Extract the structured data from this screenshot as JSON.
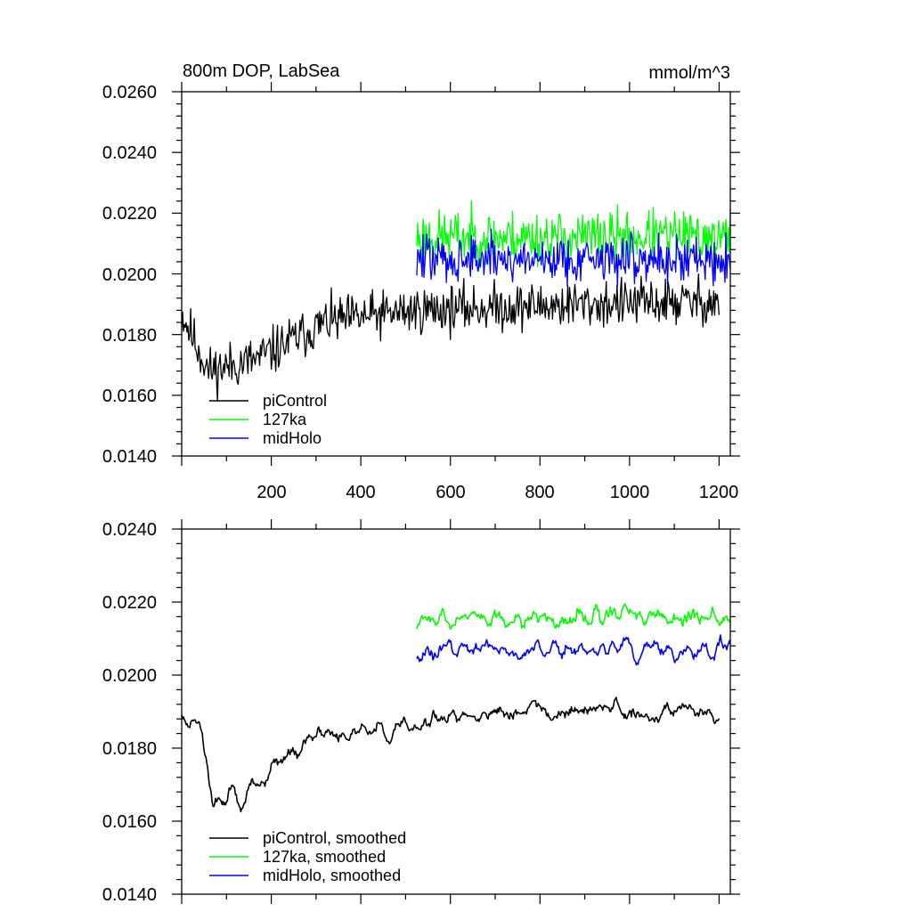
{
  "chart_data": [
    {
      "type": "line",
      "title": "800m DOP, LabSea",
      "units": "mmol/m^3",
      "xlabel": "",
      "ylabel": "",
      "xlim": [
        0,
        1225
      ],
      "ylim": [
        0.014,
        0.026
      ],
      "x_ticks": [
        200,
        400,
        600,
        800,
        1000,
        1200
      ],
      "x_tick_labels": [
        "200",
        "400",
        "600",
        "800",
        "1000",
        "1200"
      ],
      "y_ticks": [
        0.014,
        0.016,
        0.018,
        0.02,
        0.022,
        0.024,
        0.026
      ],
      "y_tick_labels": [
        "0.0140",
        "0.0160",
        "0.0180",
        "0.0200",
        "0.0220",
        "0.0240",
        "0.0260"
      ],
      "legend_position": "bottom-left",
      "series": [
        {
          "name": "piControl",
          "color": "#000000",
          "x_range": [
            0,
            1200
          ],
          "mean_trend": [
            [
              0,
              0.0187
            ],
            [
              60,
              0.0168
            ],
            [
              170,
              0.0172
            ],
            [
              320,
              0.0184
            ],
            [
              520,
              0.0188
            ],
            [
              700,
              0.0189
            ],
            [
              900,
              0.019
            ],
            [
              1200,
              0.0191
            ]
          ],
          "spread": 0.0009
        },
        {
          "name": "127ka",
          "color": "#00ff00",
          "x_range": [
            525,
            1225
          ],
          "mean_trend": [
            [
              525,
              0.0212
            ],
            [
              1225,
              0.0212
            ]
          ],
          "spread": 0.001
        },
        {
          "name": "midHolo",
          "color": "#0000ff",
          "x_range": [
            525,
            1225
          ],
          "mean_trend": [
            [
              525,
              0.0205
            ],
            [
              1225,
              0.0205
            ]
          ],
          "spread": 0.0009
        }
      ]
    },
    {
      "type": "line",
      "title": "",
      "xlim": [
        0,
        1225
      ],
      "ylim": [
        0.014,
        0.024
      ],
      "y_ticks": [
        0.014,
        0.016,
        0.018,
        0.02,
        0.022,
        0.024
      ],
      "y_tick_labels": [
        "0.0140",
        "0.0160",
        "0.0180",
        "0.0200",
        "0.0220",
        "0.0240"
      ],
      "legend_position": "bottom-left",
      "series": [
        {
          "name": "piControl, smoothed",
          "color": "#000000",
          "x_range": [
            0,
            1200
          ],
          "mean_trend": [
            [
              0,
              0.0188
            ],
            [
              40,
              0.0188
            ],
            [
              70,
              0.0165
            ],
            [
              170,
              0.017
            ],
            [
              300,
              0.0184
            ],
            [
              520,
              0.0186
            ],
            [
              700,
              0.0191
            ],
            [
              900,
              0.019
            ],
            [
              1200,
              0.019
            ]
          ],
          "spread": 0.0005
        },
        {
          "name": "127ka, smoothed",
          "color": "#00ff00",
          "x_range": [
            525,
            1225
          ],
          "mean_trend": [
            [
              525,
              0.0215
            ],
            [
              1225,
              0.0216
            ]
          ],
          "spread": 0.0006
        },
        {
          "name": "midHolo, smoothed",
          "color": "#0000ff",
          "x_range": [
            525,
            1225
          ],
          "mean_trend": [
            [
              525,
              0.0207
            ],
            [
              1225,
              0.0207
            ]
          ],
          "spread": 0.0005
        }
      ]
    }
  ]
}
